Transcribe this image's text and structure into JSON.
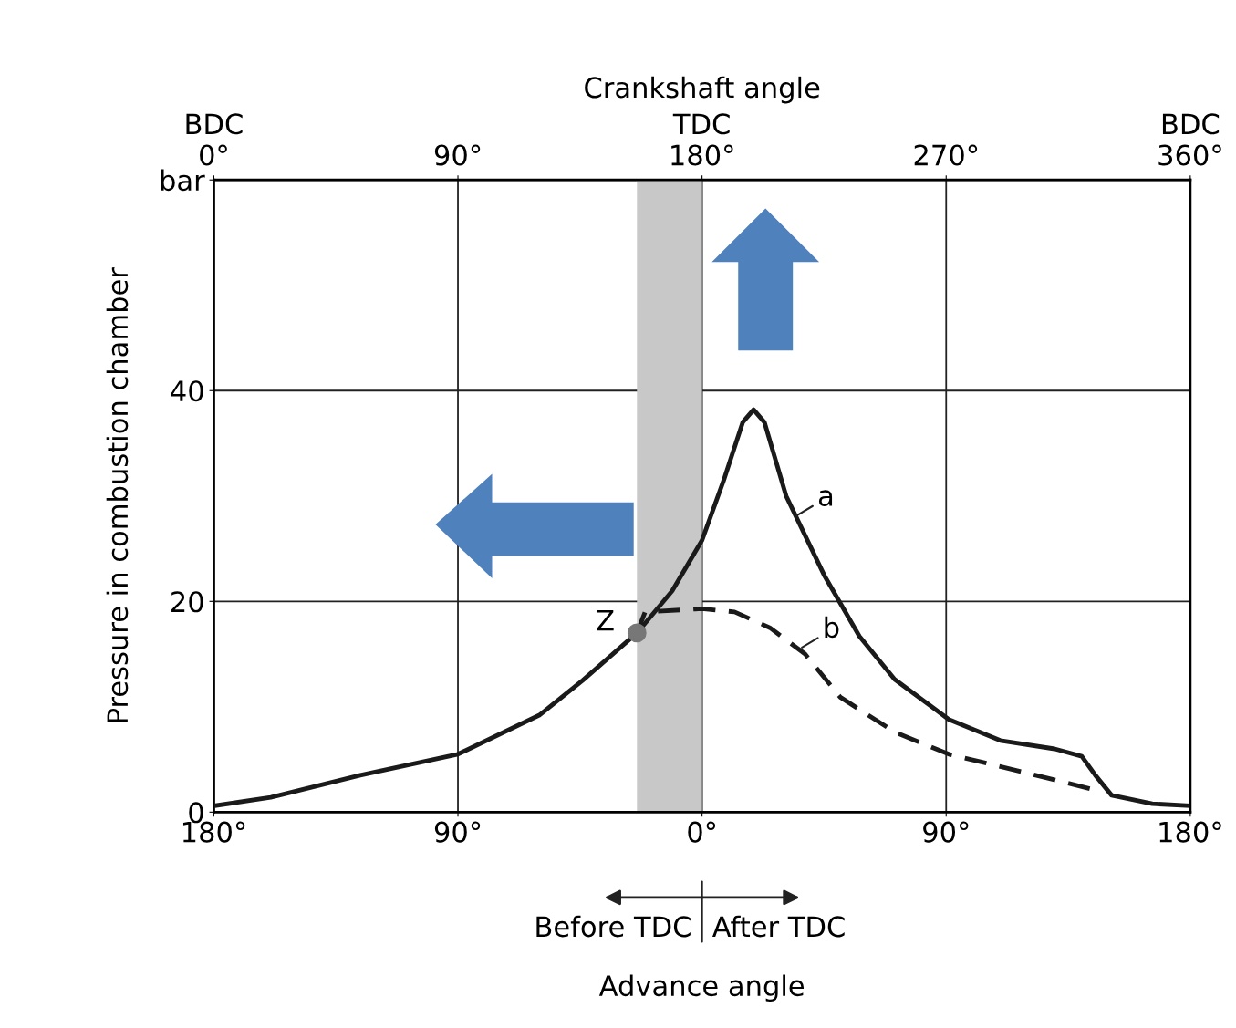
{
  "chart_data": {
    "type": "line",
    "x2label": "Crankshaft angle",
    "xlabel": "Advance angle",
    "ylabel": "Pressure in combustion chamber",
    "xlim": [
      -180,
      180
    ],
    "xticks": [
      {
        "value": -180,
        "label": "180°"
      },
      {
        "value": -90,
        "label": "90°"
      },
      {
        "value": 0,
        "label": "0°"
      },
      {
        "value": 90,
        "label": "90°"
      },
      {
        "value": 180,
        "label": "180°"
      }
    ],
    "x2lim": [
      0,
      360
    ],
    "x2ticks": [
      {
        "value": 0,
        "label": "BDC\n0°"
      },
      {
        "value": 90,
        "label": "90°"
      },
      {
        "value": 180,
        "label": "TDC\n180°"
      },
      {
        "value": 270,
        "label": "270°"
      },
      {
        "value": 360,
        "label": "BDC\n360°"
      }
    ],
    "ylim": [
      0,
      60
    ],
    "yticks": [
      0,
      20,
      40,
      {
        "value": 60,
        "label": "bar"
      }
    ],
    "grid": true,
    "marker": "none",
    "series": [
      {
        "color": "#1a1a1a",
        "line_style": "solid",
        "x": [
          -180,
          -159,
          -126,
          -90,
          -60,
          -44,
          -24,
          -11,
          0,
          8,
          15,
          19,
          23,
          31,
          45,
          58,
          71,
          91,
          110,
          130,
          140,
          145,
          151,
          166,
          180
        ],
        "values": [
          0.6,
          1.4,
          3.5,
          5.5,
          9.2,
          12.5,
          17,
          21,
          25.8,
          31.5,
          37,
          38.2,
          37,
          30,
          22.5,
          16.7,
          12.6,
          8.8,
          6.8,
          6,
          5.3,
          3.5,
          1.6,
          0.8,
          0.6
        ]
      },
      {
        "color": "#1a1a1a",
        "line_style": "dashed",
        "x": [
          -24,
          -21,
          0,
          12,
          25,
          38,
          51,
          71,
          91,
          120,
          145
        ],
        "values": [
          17,
          19,
          19.3,
          19,
          17.5,
          15,
          10.9,
          7.6,
          5.5,
          3.7,
          2.1
        ]
      }
    ],
    "bands": [
      {
        "axis": "x",
        "from": -24,
        "to": 0,
        "color": "#c8c8c8"
      }
    ],
    "annotations": [
      {
        "text": "a",
        "x": 34,
        "y": 28
      },
      {
        "text": "b",
        "x": 36,
        "y": 15.5
      },
      {
        "text": "Z",
        "x": -24,
        "y": 17
      },
      "Before TDC",
      "After TDC"
    ]
  }
}
